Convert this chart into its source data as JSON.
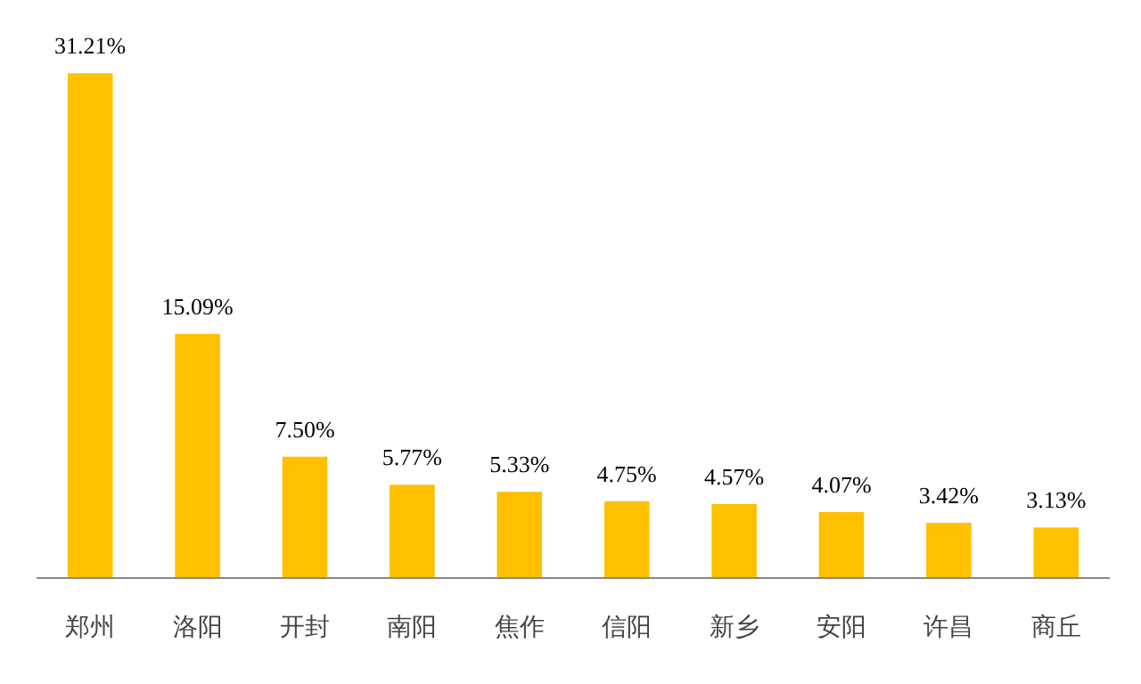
{
  "chart_data": {
    "type": "bar",
    "categories": [
      "郑州",
      "洛阳",
      "开封",
      "南阳",
      "焦作",
      "信阳",
      "新乡",
      "安阳",
      "许昌",
      "商丘"
    ],
    "values": [
      31.21,
      15.09,
      7.5,
      5.77,
      5.33,
      4.75,
      4.57,
      4.07,
      3.42,
      3.13
    ],
    "value_labels": [
      "31.21%",
      "15.09%",
      "7.50%",
      "5.77%",
      "5.33%",
      "4.75%",
      "4.57%",
      "4.07%",
      "3.42%",
      "3.13%"
    ],
    "color": "#ffc000",
    "grid": false
  }
}
